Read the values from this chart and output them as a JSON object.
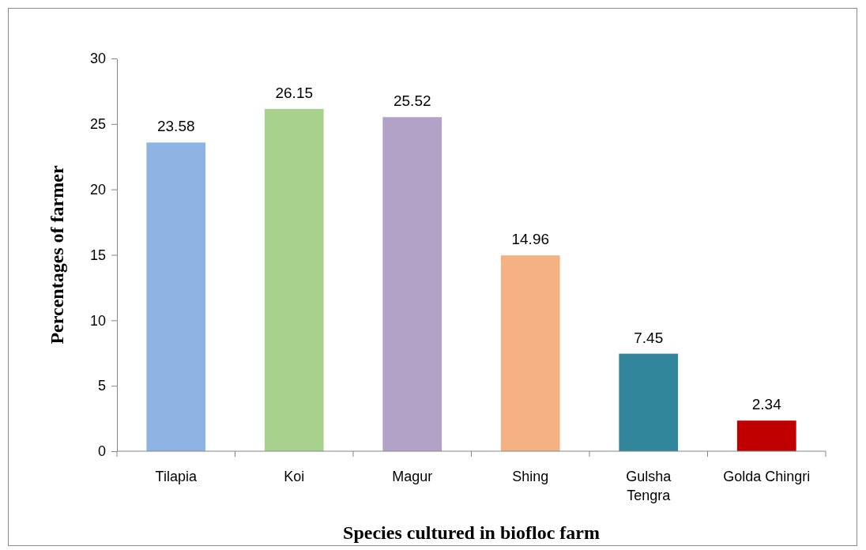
{
  "chart_data": {
    "type": "bar",
    "xlabel": "Species cultured in biofloc farm",
    "ylabel": "Percentages of farmer",
    "categories": [
      "Tilapia",
      "Koi",
      "Magur",
      "Shing",
      "Gulsha Tengra",
      "Golda Chingri"
    ],
    "values": [
      23.58,
      26.15,
      25.52,
      14.96,
      7.45,
      2.34
    ],
    "colors": [
      "#8eb4e3",
      "#a9d18e",
      "#b3a2c7",
      "#f4b183",
      "#31869b",
      "#c00000"
    ],
    "ylim": [
      0,
      30
    ],
    "yticks": [
      0,
      5,
      10,
      15,
      20,
      25,
      30
    ],
    "data_labels": true,
    "grid": false
  }
}
